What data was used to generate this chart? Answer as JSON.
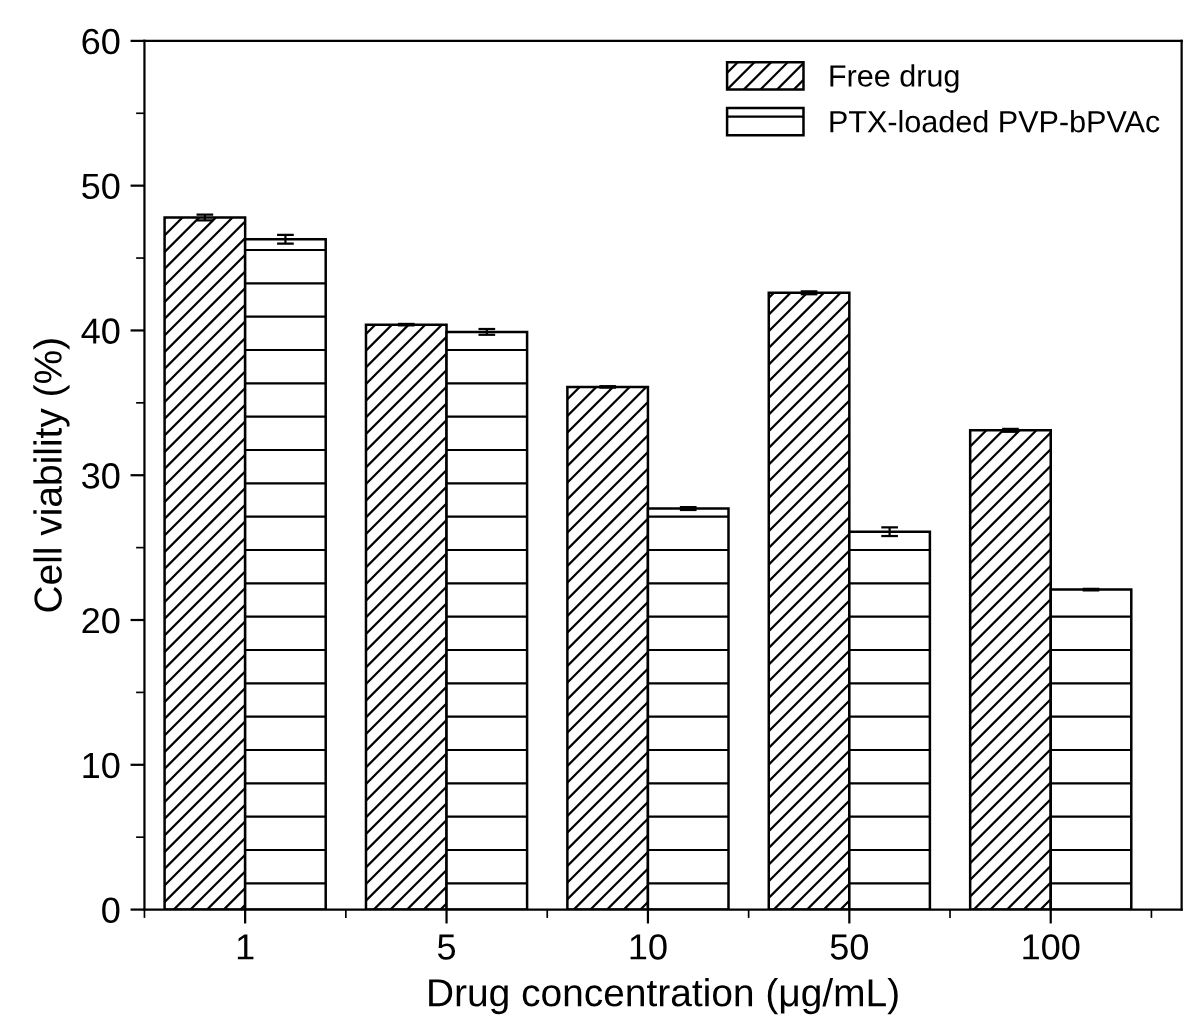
{
  "chart_data": {
    "type": "bar",
    "xlabel": "Drug concentration (μg/mL)",
    "ylabel": "Cell viability (%)",
    "categories": [
      "1",
      "5",
      "10",
      "50",
      "100"
    ],
    "series": [
      {
        "name": "Free drug",
        "color": "#000000",
        "values": [
          47.8,
          40.4,
          36.1,
          42.6,
          33.1
        ],
        "errors": [
          0.2,
          0.05,
          0.05,
          0.1,
          0.1
        ]
      },
      {
        "name": "PTX-loaded PVP-bPVAc",
        "color": "#000000",
        "values": [
          46.3,
          39.9,
          27.7,
          26.1,
          22.1
        ],
        "errors": [
          0.3,
          0.2,
          0.1,
          0.3,
          0.05
        ]
      }
    ],
    "ylim": [
      0,
      60
    ],
    "yticks": [
      0,
      10,
      20,
      30,
      40,
      50,
      60
    ],
    "grid": false,
    "legend": "top right"
  }
}
